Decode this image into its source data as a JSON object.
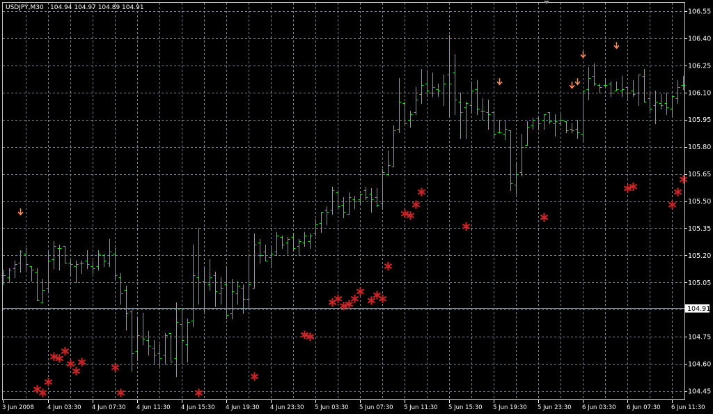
{
  "header": {
    "symbol": "USDJPY,M30",
    "ohlc": "104.94 104.97 104.89 104.91"
  },
  "colors": {
    "background": "#000000",
    "grid": "#7a8896",
    "bar": "#22e322",
    "star": "#c3262a",
    "arrow": "#ff8c69",
    "current_price_line": "#8c9aa8"
  },
  "chart_data": {
    "type": "ohlc",
    "timeframe": "M30",
    "symbol": "USDJPY",
    "price_ticks": [
      "106.55",
      "106.40",
      "106.25",
      "106.10",
      "105.95",
      "105.80",
      "105.65",
      "105.50",
      "105.35",
      "105.20",
      "105.05",
      "104.75",
      "104.60",
      "104.45"
    ],
    "ylim": [
      104.45,
      106.55
    ],
    "tick_step": 0.15,
    "grid": true,
    "current_price": "104.91",
    "time_labels": [
      {
        "bar": 0,
        "label": "3 Jun 2008"
      },
      {
        "bar": 8,
        "label": "4 Jun 03:30"
      },
      {
        "bar": 16,
        "label": "4 Jun 07:30"
      },
      {
        "bar": 24,
        "label": "4 Jun 11:30"
      },
      {
        "bar": 32,
        "label": "4 Jun 15:30"
      },
      {
        "bar": 40,
        "label": "4 Jun 19:30"
      },
      {
        "bar": 48,
        "label": "4 Jun 23:30"
      },
      {
        "bar": 56,
        "label": "5 Jun 03:30"
      },
      {
        "bar": 64,
        "label": "5 Jun 07:30"
      },
      {
        "bar": 72,
        "label": "5 Jun 11:30"
      },
      {
        "bar": 80,
        "label": "5 Jun 15:30"
      },
      {
        "bar": 88,
        "label": "5 Jun 19:30"
      },
      {
        "bar": 96,
        "label": "5 Jun 23:30"
      },
      {
        "bar": 104,
        "label": "6 Jun 03:30"
      },
      {
        "bar": 112,
        "label": "6 Jun 07:30"
      },
      {
        "bar": 120,
        "label": "6 Jun 11:30"
      }
    ],
    "bars_ohlc": [
      [
        105.09,
        105.12,
        105.04,
        105.09
      ],
      [
        105.08,
        105.13,
        105.05,
        105.12
      ],
      [
        105.13,
        105.17,
        105.08,
        105.15
      ],
      [
        105.16,
        105.23,
        105.11,
        105.22
      ],
      [
        105.21,
        105.24,
        105.12,
        105.15
      ],
      [
        105.14,
        105.14,
        105.06,
        105.12
      ],
      [
        105.11,
        105.13,
        104.95,
        104.95
      ],
      [
        104.94,
        105.07,
        104.94,
        105.01
      ],
      [
        105.02,
        105.22,
        105.0,
        105.17
      ],
      [
        105.18,
        105.28,
        105.13,
        105.25
      ],
      [
        105.24,
        105.26,
        105.12,
        105.24
      ],
      [
        105.25,
        105.25,
        105.16,
        105.16
      ],
      [
        105.16,
        105.18,
        105.09,
        105.15
      ],
      [
        105.14,
        105.17,
        105.05,
        105.15
      ],
      [
        105.16,
        105.17,
        105.1,
        105.16
      ],
      [
        105.17,
        105.23,
        105.13,
        105.15
      ],
      [
        105.14,
        105.17,
        105.1,
        105.13
      ],
      [
        105.14,
        105.23,
        105.12,
        105.21
      ],
      [
        105.2,
        105.21,
        105.14,
        105.17
      ],
      [
        105.16,
        105.29,
        105.14,
        105.22
      ],
      [
        105.21,
        105.24,
        105.07,
        105.09
      ],
      [
        105.08,
        105.1,
        104.93,
        104.99
      ],
      [
        105.01,
        105.03,
        104.79,
        104.88
      ],
      [
        104.89,
        104.9,
        104.56,
        104.66
      ],
      [
        104.67,
        104.85,
        104.62,
        104.76
      ],
      [
        104.75,
        104.88,
        104.71,
        104.74
      ],
      [
        104.73,
        104.78,
        104.65,
        104.7
      ],
      [
        104.69,
        104.73,
        104.6,
        104.65
      ],
      [
        104.66,
        104.71,
        104.59,
        104.63
      ],
      [
        104.65,
        104.77,
        104.6,
        104.76
      ],
      [
        104.77,
        104.77,
        104.61,
        104.61
      ],
      [
        104.63,
        104.94,
        104.53,
        104.83
      ],
      [
        104.82,
        104.91,
        104.6,
        104.73
      ],
      [
        104.71,
        104.85,
        104.61,
        104.83
      ],
      [
        104.84,
        105.26,
        104.81,
        105.09
      ],
      [
        105.08,
        105.35,
        104.93,
        105.05
      ],
      [
        105.06,
        105.13,
        104.89,
        105.05
      ],
      [
        105.04,
        105.18,
        105.01,
        105.08
      ],
      [
        105.09,
        105.11,
        104.92,
        105.0
      ],
      [
        104.99,
        105.08,
        104.93,
        105.02
      ],
      [
        105.04,
        105.14,
        104.85,
        104.87
      ],
      [
        104.88,
        105.07,
        104.85,
        105.0
      ],
      [
        104.99,
        105.06,
        104.93,
        105.03
      ],
      [
        105.02,
        105.04,
        104.88,
        104.96
      ],
      [
        104.96,
        105.2,
        104.91,
        105.04
      ],
      [
        105.02,
        105.32,
        105.02,
        105.26
      ],
      [
        105.27,
        105.29,
        105.16,
        105.2
      ],
      [
        105.22,
        105.26,
        105.17,
        105.17
      ],
      [
        105.19,
        105.25,
        105.14,
        105.21
      ],
      [
        105.22,
        105.33,
        105.2,
        105.31
      ],
      [
        105.3,
        105.31,
        105.24,
        105.26
      ],
      [
        105.27,
        105.3,
        105.21,
        105.29
      ],
      [
        105.3,
        105.32,
        105.23,
        105.24
      ],
      [
        105.25,
        105.29,
        105.2,
        105.28
      ],
      [
        105.27,
        105.33,
        105.25,
        105.31
      ],
      [
        105.28,
        105.32,
        105.24,
        105.31
      ],
      [
        105.32,
        105.4,
        105.31,
        105.37
      ],
      [
        105.38,
        105.44,
        105.33,
        105.44
      ],
      [
        105.45,
        105.47,
        105.37,
        105.44
      ],
      [
        105.45,
        105.58,
        105.43,
        105.56
      ],
      [
        105.55,
        105.56,
        105.46,
        105.47
      ],
      [
        105.48,
        105.52,
        105.41,
        105.44
      ],
      [
        105.43,
        105.55,
        105.43,
        105.52
      ],
      [
        105.51,
        105.53,
        105.46,
        105.5
      ],
      [
        105.51,
        105.54,
        105.49,
        105.54
      ],
      [
        105.56,
        105.58,
        105.51,
        105.52
      ],
      [
        105.54,
        105.57,
        105.44,
        105.51
      ],
      [
        105.52,
        105.57,
        105.47,
        105.48
      ],
      [
        105.49,
        105.68,
        105.46,
        105.66
      ],
      [
        105.65,
        105.78,
        105.64,
        105.7
      ],
      [
        105.69,
        105.92,
        105.69,
        105.89
      ],
      [
        105.9,
        106.18,
        105.88,
        106.05
      ],
      [
        106.04,
        106.05,
        105.93,
        105.93
      ],
      [
        105.95,
        106.0,
        105.91,
        105.98
      ],
      [
        105.99,
        106.13,
        105.98,
        106.06
      ],
      [
        106.09,
        106.23,
        106.04,
        106.14
      ],
      [
        106.15,
        106.22,
        106.08,
        106.11
      ],
      [
        106.1,
        106.21,
        106.08,
        106.13
      ],
      [
        106.12,
        106.15,
        106.08,
        106.11
      ],
      [
        106.1,
        106.2,
        106.03,
        106.15
      ],
      [
        106.2,
        106.42,
        105.97,
        106.15
      ],
      [
        106.21,
        106.31,
        105.98,
        106.06
      ],
      [
        106.05,
        106.1,
        105.85,
        105.99
      ],
      [
        106.02,
        106.05,
        105.85,
        106.04
      ],
      [
        106.03,
        106.16,
        105.99,
        106.11
      ],
      [
        106.12,
        106.17,
        105.98,
        106.01
      ],
      [
        106.0,
        106.07,
        105.95,
        106.0
      ],
      [
        105.99,
        106.06,
        105.9,
        105.98
      ],
      [
        105.99,
        106.0,
        105.85,
        105.87
      ],
      [
        105.88,
        105.95,
        105.88,
        105.88
      ],
      [
        105.87,
        105.94,
        105.84,
        105.9
      ],
      [
        105.89,
        105.89,
        105.56,
        105.6
      ],
      [
        105.59,
        105.71,
        105.54,
        105.65
      ],
      [
        105.66,
        105.87,
        105.64,
        105.8
      ],
      [
        105.81,
        105.94,
        105.81,
        105.91
      ],
      [
        105.92,
        105.96,
        105.9,
        105.95
      ],
      [
        105.96,
        105.96,
        105.9,
        105.93
      ],
      [
        105.95,
        105.98,
        105.9,
        105.98
      ],
      [
        105.99,
        105.99,
        105.93,
        105.94
      ],
      [
        105.93,
        105.98,
        105.86,
        105.94
      ],
      [
        105.93,
        105.98,
        105.92,
        105.95
      ],
      [
        105.94,
        105.94,
        105.88,
        105.89
      ],
      [
        105.9,
        105.93,
        105.88,
        105.89
      ],
      [
        105.9,
        105.95,
        105.85,
        105.88
      ],
      [
        105.87,
        106.11,
        105.83,
        106.11
      ],
      [
        106.12,
        106.24,
        106.06,
        106.18
      ],
      [
        106.19,
        106.26,
        106.14,
        106.15
      ],
      [
        106.14,
        106.15,
        106.1,
        106.13
      ],
      [
        106.14,
        106.18,
        106.13,
        106.14
      ],
      [
        106.15,
        106.16,
        106.08,
        106.1
      ],
      [
        106.11,
        106.16,
        106.11,
        106.12
      ],
      [
        106.11,
        106.19,
        106.08,
        106.12
      ],
      [
        106.13,
        106.13,
        106.06,
        106.1
      ],
      [
        106.11,
        106.17,
        106.08,
        106.09
      ],
      [
        106.1,
        106.2,
        106.03,
        106.2
      ],
      [
        106.19,
        106.23,
        106.05,
        106.05
      ],
      [
        106.07,
        106.11,
        106.0,
        106.01
      ],
      [
        106.03,
        106.11,
        105.93,
        106.05
      ],
      [
        106.04,
        106.09,
        106.01,
        106.03
      ],
      [
        106.04,
        106.1,
        105.98,
        106.02
      ],
      [
        106.01,
        106.08,
        105.97,
        106.08
      ],
      [
        106.07,
        106.17,
        106.04,
        106.13
      ],
      [
        106.14,
        106.19,
        106.12,
        106.14
      ]
    ],
    "star_markers": [
      [
        6,
        104.46
      ],
      [
        7,
        104.44
      ],
      [
        8,
        104.5
      ],
      [
        9,
        104.64
      ],
      [
        10,
        104.63
      ],
      [
        11,
        104.67
      ],
      [
        12,
        104.6
      ],
      [
        13,
        104.56
      ],
      [
        14,
        104.61
      ],
      [
        20,
        104.58
      ],
      [
        21,
        104.44
      ],
      [
        35,
        104.44
      ],
      [
        45,
        104.53
      ],
      [
        54,
        104.76
      ],
      [
        55,
        104.75
      ],
      [
        59,
        104.94
      ],
      [
        60,
        104.96
      ],
      [
        61,
        104.92
      ],
      [
        62,
        104.93
      ],
      [
        63,
        104.96
      ],
      [
        64,
        105.0
      ],
      [
        66,
        104.95
      ],
      [
        67,
        104.98
      ],
      [
        68,
        104.96
      ],
      [
        69,
        105.14
      ],
      [
        72,
        105.43
      ],
      [
        73,
        105.42
      ],
      [
        74,
        105.48
      ],
      [
        75,
        105.55
      ],
      [
        83,
        105.36
      ],
      [
        97,
        105.41
      ],
      [
        112,
        105.57
      ],
      [
        113,
        105.58
      ],
      [
        120,
        105.48
      ],
      [
        121,
        105.55
      ],
      [
        122,
        105.62
      ]
    ],
    "down_arrow_markers": [
      [
        3,
        105.44
      ],
      [
        89,
        106.16
      ],
      [
        102,
        106.14
      ],
      [
        103,
        106.16
      ],
      [
        104,
        106.31
      ],
      [
        110,
        106.36
      ]
    ]
  }
}
